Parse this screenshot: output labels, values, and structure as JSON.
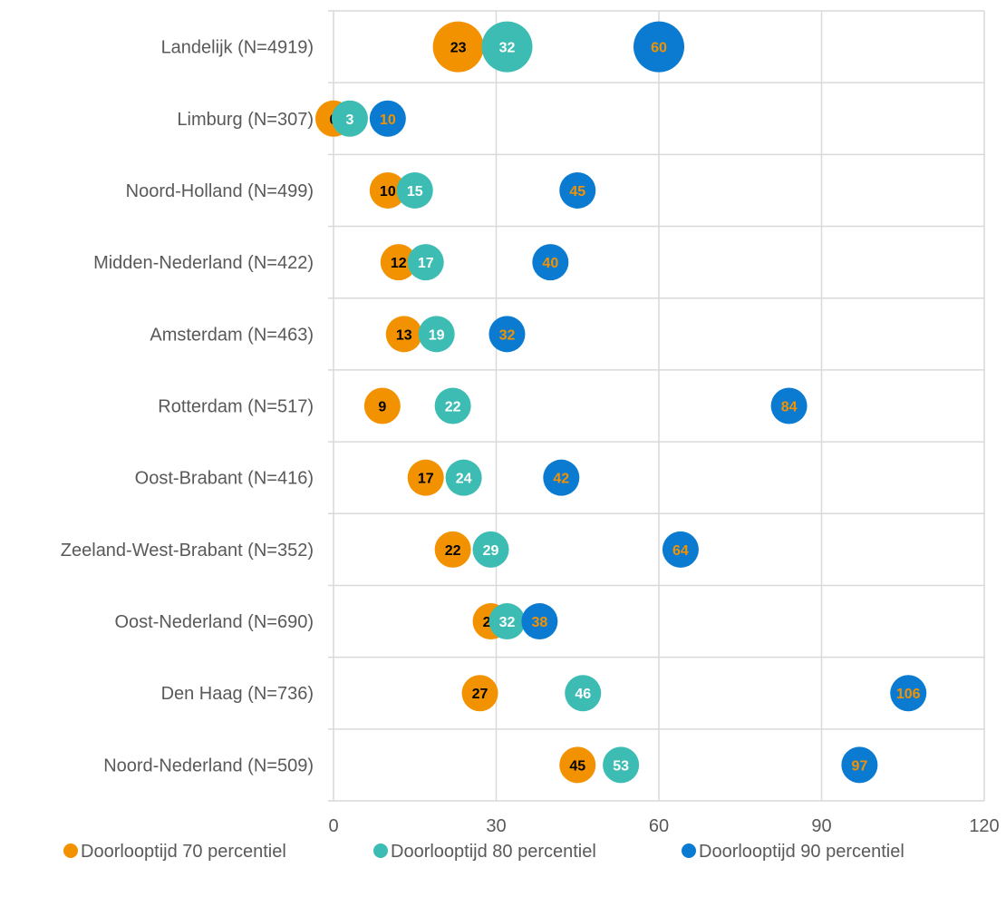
{
  "chart_data": {
    "type": "scatter",
    "title": "",
    "xlabel": "",
    "ylabel": "",
    "xlim": [
      0,
      120
    ],
    "x_ticks": [
      0,
      30,
      60,
      90,
      120
    ],
    "x_tick_labels": [
      "0",
      "30",
      "60",
      "90",
      "120"
    ],
    "grid": true,
    "legend_position": "bottom",
    "categories": [
      "Landelijk (N=4919)",
      "Limburg (N=307)",
      "Noord-Holland (N=499)",
      "Midden-Nederland (N=422)",
      "Amsterdam (N=463)",
      "Rotterdam (N=517)",
      "Oost-Brabant (N=416)",
      "Zeeland-West-Brabant (N=352)",
      "Oost-Nederland (N=690)",
      "Den Haag (N=736)",
      "Noord-Nederland (N=509)"
    ],
    "series": [
      {
        "name": "Doorlooptijd 70 percentiel",
        "color": "#F39200",
        "label_color": "#000000",
        "values": [
          23,
          0,
          10,
          12,
          13,
          9,
          17,
          22,
          29,
          27,
          45
        ],
        "value_labels": [
          "23",
          "0",
          "10",
          "12",
          "13",
          "9",
          "17",
          "22",
          "29",
          "27",
          "45"
        ]
      },
      {
        "name": "Doorlooptijd 80 percentiel",
        "color": "#3CBCB3",
        "label_color": "#FFFFFF",
        "values": [
          32,
          3,
          15,
          17,
          19,
          22,
          24,
          29,
          32,
          46,
          53
        ],
        "value_labels": [
          "32",
          "3",
          "15",
          "17",
          "19",
          "22",
          "24",
          "29",
          "32",
          "46",
          "53"
        ]
      },
      {
        "name": "Doorlooptijd 90 percentiel",
        "color": "#0A7BD1",
        "label_color": "#F39200",
        "values": [
          60,
          10,
          45,
          40,
          32,
          84,
          42,
          64,
          38,
          106,
          97
        ],
        "value_labels": [
          "60",
          "10",
          "45",
          "40",
          "32",
          "84",
          "42",
          "64",
          "38",
          "106",
          "97"
        ]
      }
    ],
    "emphasized_category": "Landelijk (N=4919)"
  }
}
